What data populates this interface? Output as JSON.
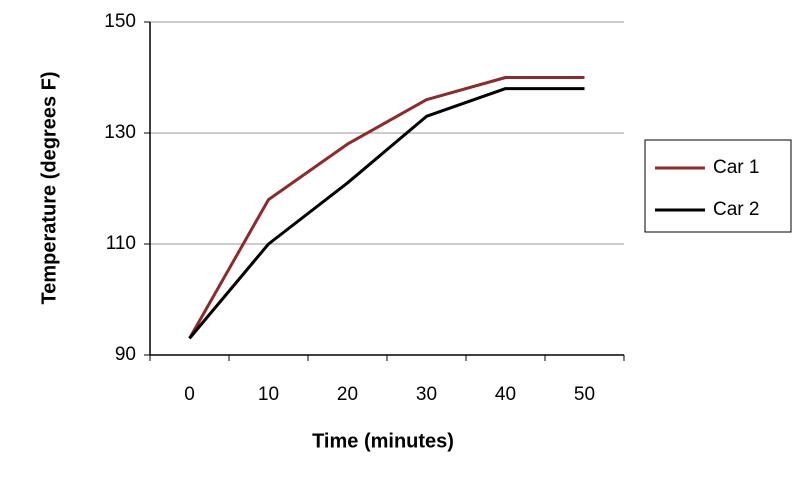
{
  "chart_data": {
    "type": "line",
    "x_label": "Time (minutes)",
    "y_label": "Temperature (degrees F)",
    "categories": [
      0,
      10,
      20,
      30,
      40,
      50
    ],
    "series": [
      {
        "name": "Car 1",
        "color": "#8b2b2b",
        "values": [
          93,
          118,
          128,
          136,
          140,
          140
        ]
      },
      {
        "name": "Car 2",
        "color": "#000000",
        "values": [
          93,
          110,
          121,
          133,
          138,
          138
        ]
      }
    ],
    "ylim": [
      90,
      150
    ],
    "yticks": [
      90,
      110,
      130,
      150
    ],
    "grid": true,
    "legend": "right"
  }
}
